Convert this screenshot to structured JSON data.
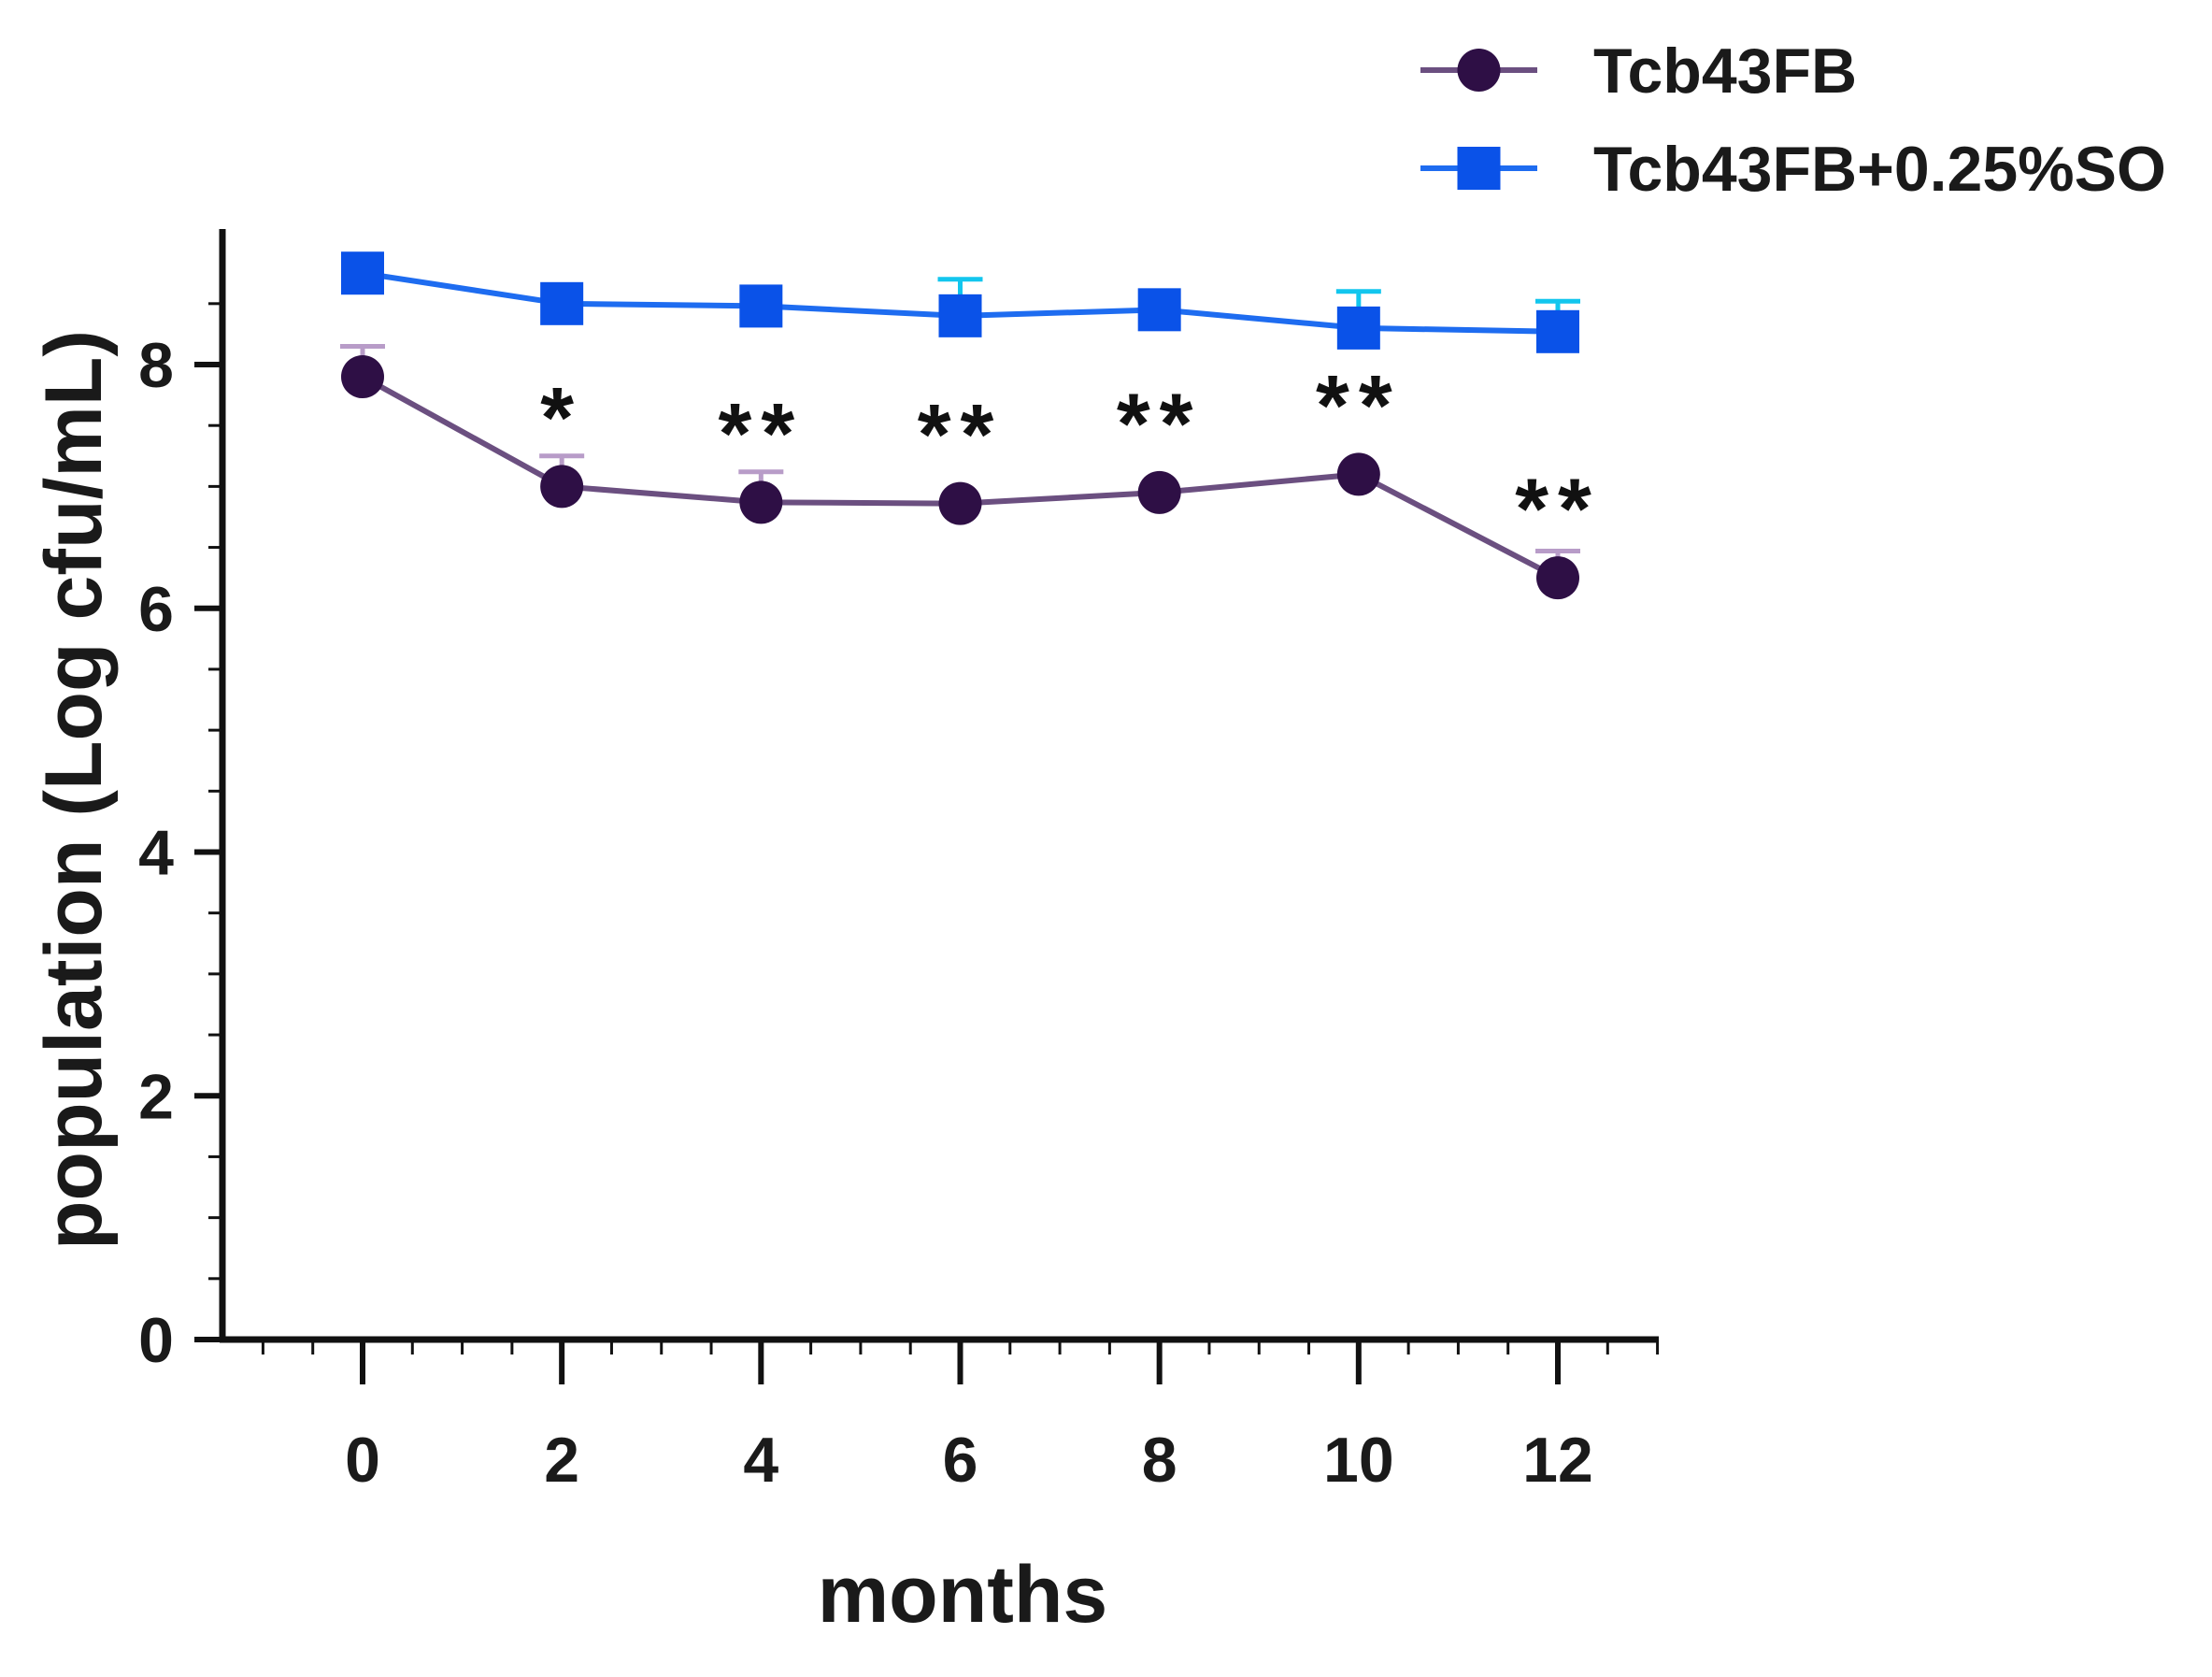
{
  "chart_data": {
    "type": "line",
    "title": "",
    "xlabel": "months",
    "ylabel": "population (Log cfu/mL)",
    "x": [
      0,
      2,
      4,
      6,
      8,
      10,
      12
    ],
    "xticks": [
      "0",
      "2",
      "4",
      "6",
      "8",
      "10",
      "12"
    ],
    "yticks": [
      "0",
      "2",
      "4",
      "6",
      "8"
    ],
    "xlim": [
      -1,
      13.4
    ],
    "ylim": [
      0,
      9
    ],
    "grid": false,
    "legend_position": "top-right",
    "series": [
      {
        "name": "Tcb43FB",
        "marker": "circle",
        "color": "#2e0f45",
        "line_color": "#6b4f80",
        "error_color": "#b89cc8",
        "values": [
          7.9,
          7.0,
          6.87,
          6.86,
          6.95,
          7.1,
          6.25
        ],
        "errors": [
          0.25,
          0.25,
          0.25,
          0.0,
          0.0,
          0.0,
          0.22
        ]
      },
      {
        "name": "Tcb43FB+0.25%SO",
        "marker": "square",
        "color": "#0a52e8",
        "line_color": "#1e6cf0",
        "error_color": "#12c6ee",
        "values": [
          8.75,
          8.5,
          8.48,
          8.4,
          8.45,
          8.3,
          8.27
        ],
        "errors": [
          0.0,
          0.0,
          0.0,
          0.3,
          0.0,
          0.3,
          0.25
        ]
      }
    ],
    "annotations": [
      {
        "x": 2,
        "text": "*"
      },
      {
        "x": 4,
        "text": "**"
      },
      {
        "x": 6,
        "text": "**"
      },
      {
        "x": 8,
        "text": "**"
      },
      {
        "x": 10,
        "text": "**"
      },
      {
        "x": 12,
        "text": "**"
      }
    ]
  }
}
